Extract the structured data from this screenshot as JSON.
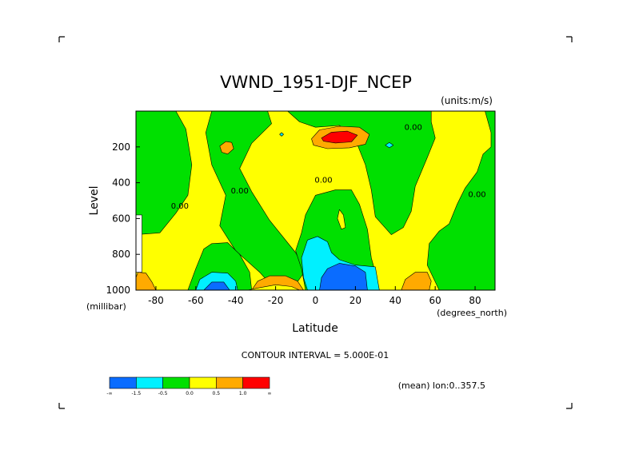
{
  "chart_data": {
    "type": "contour",
    "title": "VWND_1951-DJF_NCEP",
    "units_label": "(units:m/s)",
    "xlabel": "Latitude",
    "xunit": "(degrees_north)",
    "ylabel": "Level",
    "yunit": "(millibar)",
    "xlim": [
      -90,
      90
    ],
    "ylim": [
      1000,
      0
    ],
    "x_ticks": [
      {
        "value": -80,
        "label": "-80"
      },
      {
        "value": -60,
        "label": "-60"
      },
      {
        "value": -40,
        "label": "-40"
      },
      {
        "value": -20,
        "label": "-20"
      },
      {
        "value": 0,
        "label": "0"
      },
      {
        "value": 20,
        "label": "20"
      },
      {
        "value": 40,
        "label": "40"
      },
      {
        "value": 60,
        "label": "60"
      },
      {
        "value": 80,
        "label": "80"
      }
    ],
    "y_ticks": [
      {
        "value": 200,
        "label": "200"
      },
      {
        "value": 400,
        "label": "400"
      },
      {
        "value": 600,
        "label": "600"
      },
      {
        "value": 800,
        "label": "800"
      },
      {
        "value": 1000,
        "label": "1000"
      }
    ],
    "contour_interval_text": "CONTOUR INTERVAL = 5.000E-01",
    "mean_text": "(mean) lon:0..357.5",
    "contour_labels": [
      {
        "lat": 49,
        "lev": 105,
        "text": "0.00"
      },
      {
        "lat": 4,
        "lev": 400,
        "text": "0.00"
      },
      {
        "lat": -68,
        "lev": 545,
        "text": "0.00"
      },
      {
        "lat": -38,
        "lev": 460,
        "text": "0.00"
      },
      {
        "lat": 81,
        "lev": 480,
        "text": "0.00"
      }
    ],
    "colorbar": {
      "colors": [
        "#0a6cff",
        "#00f0ff",
        "#00e000",
        "#ffff00",
        "#ffaa00",
        "#ff0000"
      ],
      "tick_labels": [
        "-∞",
        "-1.5",
        "-0.5",
        "0.0",
        "0.5",
        "1.0",
        "∞"
      ]
    },
    "background_color": "#ffff00",
    "regions": [
      {
        "color": "#00e000",
        "points": [
          [
            -90,
            0
          ],
          [
            -70,
            0
          ],
          [
            -65,
            100
          ],
          [
            -62,
            300
          ],
          [
            -64,
            470
          ],
          [
            -70,
            570
          ],
          [
            -78,
            680
          ],
          [
            -90,
            690
          ]
        ]
      },
      {
        "color": "#00e000",
        "points": [
          [
            -52,
            0
          ],
          [
            -24,
            0
          ],
          [
            -22,
            70
          ],
          [
            -32,
            180
          ],
          [
            -38,
            320
          ],
          [
            -32,
            450
          ],
          [
            -23,
            610
          ],
          [
            -10,
            790
          ],
          [
            -5,
            890
          ],
          [
            -12,
            1000
          ],
          [
            -20,
            1000
          ],
          [
            -28,
            900
          ],
          [
            -40,
            780
          ],
          [
            -48,
            640
          ],
          [
            -45,
            470
          ],
          [
            -52,
            300
          ],
          [
            -55,
            120
          ]
        ]
      },
      {
        "color": "#00e000",
        "points": [
          [
            -64,
            1000
          ],
          [
            -60,
            880
          ],
          [
            -56,
            770
          ],
          [
            -52,
            740
          ],
          [
            -44,
            735
          ],
          [
            -38,
            800
          ],
          [
            -33,
            900
          ],
          [
            -32,
            1000
          ]
        ]
      },
      {
        "color": "#00e000",
        "points": [
          [
            -5,
            1000
          ],
          [
            -7,
            880
          ],
          [
            -10,
            780
          ],
          [
            -7,
            680
          ],
          [
            -5,
            580
          ],
          [
            0,
            470
          ],
          [
            10,
            440
          ],
          [
            18,
            440
          ],
          [
            22,
            520
          ],
          [
            26,
            660
          ],
          [
            28,
            820
          ],
          [
            30,
            900
          ],
          [
            32,
            1000
          ]
        ]
      },
      {
        "color": "#00e000",
        "points": [
          [
            -14,
            0
          ],
          [
            58,
            0
          ],
          [
            58,
            60
          ],
          [
            60,
            150
          ],
          [
            56,
            260
          ],
          [
            50,
            420
          ],
          [
            48,
            560
          ],
          [
            44,
            650
          ],
          [
            38,
            690
          ],
          [
            30,
            590
          ],
          [
            28,
            440
          ],
          [
            25,
            300
          ],
          [
            20,
            160
          ],
          [
            12,
            80
          ],
          [
            0,
            90
          ],
          [
            -8,
            60
          ]
        ]
      },
      {
        "color": "#00e000",
        "points": [
          [
            85,
            0
          ],
          [
            90,
            0
          ],
          [
            90,
            1000
          ],
          [
            62,
            1000
          ],
          [
            56,
            860
          ],
          [
            57,
            740
          ],
          [
            62,
            670
          ],
          [
            67,
            630
          ],
          [
            71,
            520
          ],
          [
            75,
            430
          ],
          [
            81,
            340
          ],
          [
            84,
            240
          ],
          [
            88,
            200
          ],
          [
            88,
            120
          ]
        ]
      },
      {
        "color": "#ffff00",
        "points": [
          [
            12,
            550
          ],
          [
            14,
            580
          ],
          [
            15,
            650
          ],
          [
            13,
            660
          ],
          [
            11,
            600
          ]
        ]
      },
      {
        "color": "#00f0ff",
        "points": [
          [
            -7,
            820
          ],
          [
            -4,
            720
          ],
          [
            1,
            700
          ],
          [
            6,
            730
          ],
          [
            8,
            790
          ],
          [
            12,
            830
          ],
          [
            20,
            860
          ],
          [
            30,
            870
          ],
          [
            32,
            1000
          ],
          [
            -4,
            1000
          ],
          [
            -6,
            930
          ]
        ]
      },
      {
        "color": "#0a6cff",
        "points": [
          [
            2,
            1000
          ],
          [
            3,
            930
          ],
          [
            6,
            880
          ],
          [
            12,
            850
          ],
          [
            20,
            865
          ],
          [
            25,
            900
          ],
          [
            26,
            1000
          ]
        ]
      },
      {
        "color": "#00f0ff",
        "points": [
          [
            -60,
            1000
          ],
          [
            -58,
            940
          ],
          [
            -52,
            900
          ],
          [
            -44,
            905
          ],
          [
            -40,
            950
          ],
          [
            -39,
            1000
          ]
        ]
      },
      {
        "color": "#0a6cff",
        "points": [
          [
            -56,
            1000
          ],
          [
            -52,
            955
          ],
          [
            -46,
            955
          ],
          [
            -43,
            1000
          ]
        ]
      },
      {
        "color": "#ffaa00",
        "points": [
          [
            -2,
            155
          ],
          [
            2,
            105
          ],
          [
            12,
            85
          ],
          [
            22,
            90
          ],
          [
            27,
            130
          ],
          [
            25,
            185
          ],
          [
            17,
            205
          ],
          [
            6,
            210
          ],
          [
            -1,
            190
          ]
        ]
      },
      {
        "color": "#ff0000",
        "points": [
          [
            3,
            150
          ],
          [
            8,
            118
          ],
          [
            16,
            112
          ],
          [
            21,
            135
          ],
          [
            18,
            172
          ],
          [
            10,
            178
          ],
          [
            4,
            168
          ]
        ]
      },
      {
        "color": "#ffaa00",
        "points": [
          [
            -48,
            195
          ],
          [
            -45,
            170
          ],
          [
            -42,
            175
          ],
          [
            -41,
            210
          ],
          [
            -44,
            240
          ],
          [
            -47,
            230
          ]
        ]
      },
      {
        "color": "#ffaa00",
        "points": [
          [
            -90,
            930
          ],
          [
            -89,
            900
          ],
          [
            -85,
            905
          ],
          [
            -82,
            955
          ],
          [
            -80,
            1000
          ],
          [
            -90,
            1000
          ]
        ]
      },
      {
        "color": "#ffaa00",
        "points": [
          [
            -32,
            1000
          ],
          [
            -29,
            950
          ],
          [
            -23,
            920
          ],
          [
            -15,
            920
          ],
          [
            -9,
            950
          ],
          [
            -6,
            1000
          ]
        ]
      },
      {
        "color": "#ffaa00",
        "points": [
          [
            43,
            1000
          ],
          [
            45,
            940
          ],
          [
            50,
            900
          ],
          [
            56,
            900
          ],
          [
            58,
            950
          ],
          [
            57,
            1000
          ]
        ]
      },
      {
        "color": "#ffff00",
        "points": [
          [
            -34,
            1000
          ],
          [
            -30,
            990
          ],
          [
            -20,
            970
          ],
          [
            -12,
            980
          ],
          [
            -8,
            1000
          ]
        ]
      },
      {
        "color": "#00f0ff",
        "points": [
          [
            -18,
            130
          ],
          [
            -17,
            120
          ],
          [
            -16,
            130
          ],
          [
            -17,
            140
          ]
        ]
      },
      {
        "color": "#00f0ff",
        "points": [
          [
            35,
            190
          ],
          [
            37,
            175
          ],
          [
            39,
            190
          ],
          [
            37,
            205
          ]
        ]
      },
      {
        "color": "#ffffff",
        "points": [
          [
            -90,
            580
          ],
          [
            -87,
            580
          ],
          [
            -87,
            900
          ],
          [
            -90,
            900
          ]
        ]
      }
    ]
  }
}
